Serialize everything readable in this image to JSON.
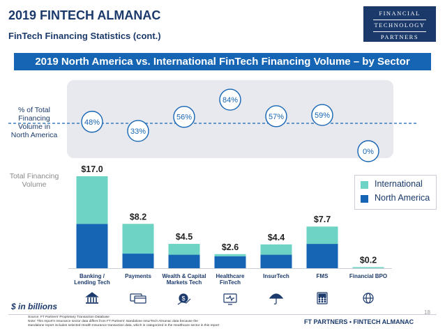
{
  "header": {
    "title": "2019 FINTECH ALMANAC",
    "subtitle": "FinTech Financing Statistics (cont.)",
    "banner": "2019 North America vs. International FinTech Financing Volume – by Sector"
  },
  "logo": {
    "line1": "FINANCIAL",
    "line2": "TECHNOLOGY",
    "line3": "PARTNERS"
  },
  "labels": {
    "pct_axis": [
      "% of Total",
      "Financing",
      "Volume in",
      "North America"
    ],
    "total_axis": [
      "Total Financing",
      "Volume"
    ],
    "units": "$ in billions"
  },
  "chart_data": {
    "type": "bar",
    "stacked": true,
    "categories": [
      "Banking / Lending Tech",
      "Payments",
      "Wealth & Capital Markets Tech",
      "Healthcare FinTech",
      "InsurTech",
      "FMS",
      "Financial BPO"
    ],
    "category_lines": [
      [
        "Banking /",
        "Lending Tech"
      ],
      [
        "Payments"
      ],
      [
        "Wealth & Capital",
        "Markets Tech"
      ],
      [
        "Healthcare",
        "FinTech"
      ],
      [
        "InsurTech"
      ],
      [
        "FMS"
      ],
      [
        "Financial BPO"
      ]
    ],
    "series": [
      {
        "name": "North America",
        "color": "#1565b4",
        "values": [
          8.2,
          2.7,
          2.5,
          2.2,
          2.5,
          4.5,
          0.0
        ]
      },
      {
        "name": "International",
        "color": "#6dd3c4",
        "values": [
          8.8,
          5.5,
          2.0,
          0.4,
          1.9,
          3.2,
          0.2
        ]
      }
    ],
    "totals": [
      17.0,
      8.2,
      4.5,
      2.6,
      4.4,
      7.7,
      0.2
    ],
    "total_labels": [
      "$17.0",
      "$8.2",
      "$4.5",
      "$2.6",
      "$4.4",
      "$7.7",
      "$0.2"
    ],
    "pct_north_america": [
      48,
      33,
      56,
      84,
      57,
      59,
      0
    ],
    "pct_labels": [
      "48%",
      "33%",
      "56%",
      "84%",
      "57%",
      "59%",
      "0%"
    ],
    "pct_reference": 50,
    "ylim": [
      0,
      17.0
    ],
    "legend": {
      "position": "right",
      "entries": [
        "International",
        "North America"
      ]
    },
    "icons": [
      "bank-icon",
      "card-icon",
      "money-bag-icon",
      "monitor-icon",
      "umbrella-icon",
      "calculator-icon",
      "globe-icon"
    ],
    "colors": {
      "navy": "#1b3a6b",
      "north_america": "#1565b4",
      "international": "#6dd3c4",
      "panel": "#e7e9ee"
    }
  },
  "footer": {
    "source_line1": "Source: FT Partners' Proprietary Transaction Database",
    "source_line2": "Note: This report's Insurance sector data differs from FT Partners' standalone InsurTech Almanac data because the",
    "source_line3": "standalone report includes selected Health Insurance transaction data, which is categorized in the Healthcare sector in this report",
    "brand": "FT PARTNERS • FINTECH ALMANAC",
    "page": "18"
  }
}
